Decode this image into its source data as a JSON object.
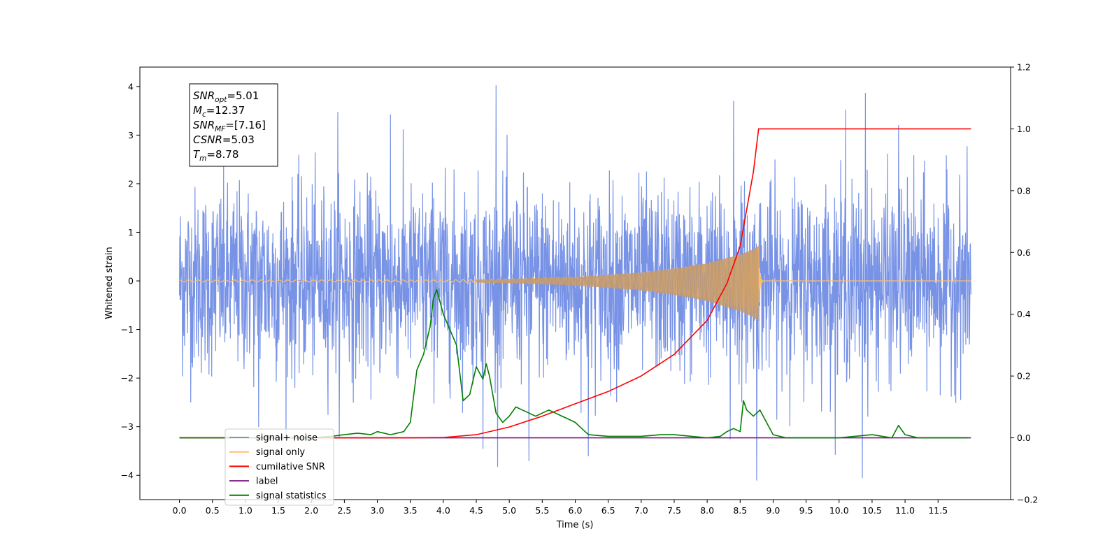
{
  "chart_data": {
    "type": "line",
    "xlabel": "Time (s)",
    "ylabel_left": "Whitened strain",
    "xlim": [
      -0.6,
      12.6
    ],
    "ylim_left": [
      -4.5,
      4.4
    ],
    "ylim_right": [
      -0.2,
      1.2
    ],
    "x_ticks": [
      "0.0",
      "0.5",
      "1.0",
      "1.5",
      "2.0",
      "2.5",
      "3.0",
      "3.5",
      "4.0",
      "4.5",
      "5.0",
      "5.5",
      "6.0",
      "6.5",
      "7.0",
      "7.5",
      "8.0",
      "8.5",
      "9.0",
      "9.5",
      "10.0",
      "10.5",
      "11.0",
      "11.5"
    ],
    "y_ticks_left": [
      "4",
      "3",
      "2",
      "1",
      "0",
      "−1",
      "−2",
      "−3",
      "−4"
    ],
    "y_ticks_right": [
      "1.2",
      "1.0",
      "0.8",
      "0.6",
      "0.4",
      "0.2",
      "0.0",
      "−0.2"
    ],
    "annotation_box": {
      "lines": [
        {
          "base": "SNR",
          "sub": "opt",
          "value": "=5.01"
        },
        {
          "base": "M",
          "sub": "c",
          "value": "=12.37"
        },
        {
          "base": "SNR",
          "sub": "MF",
          "value": "=[7.16]"
        },
        {
          "base": "CSNR",
          "sub": "",
          "value": "=5.03"
        },
        {
          "base": "T",
          "sub": "m",
          "value": "=8.78"
        }
      ]
    },
    "legend": {
      "placement": "lower-left",
      "entries": [
        {
          "label": "signal+ noise",
          "color": "#7893e6"
        },
        {
          "label": "signal only",
          "color": "#ffbf6b"
        },
        {
          "label": "cumilative SNR",
          "color": "#ff0000"
        },
        {
          "label": "label",
          "color": "#7a1a7a"
        },
        {
          "label": "signal statistics",
          "color": "#008000"
        }
      ]
    },
    "series": [
      {
        "name": "signal+ noise",
        "axis": "left",
        "color": "#7893e6",
        "x_range": [
          0,
          12
        ],
        "envelope_typical": 2.0,
        "spikes": [
          {
            "x": 4.8,
            "y": 4.02
          },
          {
            "x": 10.4,
            "y": 3.86
          },
          {
            "x": 8.4,
            "y": 3.7
          },
          {
            "x": 2.4,
            "y": 3.47
          },
          {
            "x": 3.2,
            "y": 3.42
          },
          {
            "x": 10.1,
            "y": 3.52
          },
          {
            "x": 10.9,
            "y": 3.2
          },
          {
            "x": 8.75,
            "y": -4.1
          },
          {
            "x": 10.35,
            "y": -4.05
          },
          {
            "x": 5.3,
            "y": -3.7
          },
          {
            "x": 4.6,
            "y": -3.45
          },
          {
            "x": 6.2,
            "y": -3.6
          },
          {
            "x": 1.2,
            "y": -3.0
          },
          {
            "x": 8.35,
            "y": -3.25
          }
        ]
      },
      {
        "name": "signal only",
        "axis": "left",
        "color": "#ffbf6b",
        "merger_time": 8.78,
        "amplitude_points": [
          [
            0,
            0.02
          ],
          [
            4.0,
            0.02
          ],
          [
            5.0,
            0.04
          ],
          [
            6.0,
            0.08
          ],
          [
            7.0,
            0.17
          ],
          [
            7.5,
            0.25
          ],
          [
            8.0,
            0.36
          ],
          [
            8.3,
            0.47
          ],
          [
            8.5,
            0.54
          ],
          [
            8.7,
            0.65
          ],
          [
            8.78,
            0.72
          ],
          [
            8.82,
            0.0
          ]
        ]
      },
      {
        "name": "cumilative SNR",
        "axis": "right",
        "color": "#ff0000",
        "points": [
          [
            0,
            0
          ],
          [
            3.5,
            0
          ],
          [
            4.0,
            0.001
          ],
          [
            4.5,
            0.01
          ],
          [
            5.0,
            0.035
          ],
          [
            5.5,
            0.07
          ],
          [
            6.0,
            0.11
          ],
          [
            6.5,
            0.15
          ],
          [
            7.0,
            0.2
          ],
          [
            7.5,
            0.27
          ],
          [
            8.0,
            0.38
          ],
          [
            8.3,
            0.5
          ],
          [
            8.5,
            0.62
          ],
          [
            8.7,
            0.86
          ],
          [
            8.78,
            1.0
          ],
          [
            12,
            1.0
          ]
        ]
      },
      {
        "name": "label",
        "axis": "right",
        "color": "#7a1a7a",
        "points": [
          [
            0,
            0
          ],
          [
            12,
            0
          ]
        ]
      },
      {
        "name": "signal statistics",
        "axis": "right",
        "color": "#008000",
        "points": [
          [
            0,
            0
          ],
          [
            2.0,
            0
          ],
          [
            2.3,
            0.005
          ],
          [
            2.5,
            0.01
          ],
          [
            2.7,
            0.015
          ],
          [
            2.9,
            0.01
          ],
          [
            3.0,
            0.02
          ],
          [
            3.2,
            0.01
          ],
          [
            3.4,
            0.02
          ],
          [
            3.5,
            0.05
          ],
          [
            3.6,
            0.22
          ],
          [
            3.7,
            0.27
          ],
          [
            3.8,
            0.36
          ],
          [
            3.85,
            0.45
          ],
          [
            3.9,
            0.48
          ],
          [
            4.0,
            0.4
          ],
          [
            4.1,
            0.35
          ],
          [
            4.2,
            0.3
          ],
          [
            4.3,
            0.12
          ],
          [
            4.4,
            0.14
          ],
          [
            4.5,
            0.23
          ],
          [
            4.6,
            0.19
          ],
          [
            4.65,
            0.24
          ],
          [
            4.7,
            0.2
          ],
          [
            4.8,
            0.08
          ],
          [
            4.9,
            0.05
          ],
          [
            5.0,
            0.07
          ],
          [
            5.1,
            0.1
          ],
          [
            5.2,
            0.09
          ],
          [
            5.3,
            0.08
          ],
          [
            5.4,
            0.07
          ],
          [
            5.5,
            0.08
          ],
          [
            5.6,
            0.09
          ],
          [
            5.7,
            0.08
          ],
          [
            5.8,
            0.07
          ],
          [
            5.9,
            0.06
          ],
          [
            6.0,
            0.05
          ],
          [
            6.1,
            0.03
          ],
          [
            6.2,
            0.01
          ],
          [
            6.5,
            0.005
          ],
          [
            7.0,
            0.005
          ],
          [
            7.3,
            0.01
          ],
          [
            7.5,
            0.01
          ],
          [
            8.0,
            0.0
          ],
          [
            8.2,
            0.005
          ],
          [
            8.3,
            0.02
          ],
          [
            8.4,
            0.03
          ],
          [
            8.5,
            0.02
          ],
          [
            8.55,
            0.12
          ],
          [
            8.6,
            0.09
          ],
          [
            8.7,
            0.07
          ],
          [
            8.8,
            0.09
          ],
          [
            8.9,
            0.05
          ],
          [
            9.0,
            0.01
          ],
          [
            9.2,
            0.0
          ],
          [
            10.0,
            0.0
          ],
          [
            10.5,
            0.01
          ],
          [
            10.8,
            0.0
          ],
          [
            10.9,
            0.04
          ],
          [
            11.0,
            0.01
          ],
          [
            11.2,
            0.0
          ],
          [
            11.95,
            0.0
          ]
        ]
      }
    ]
  }
}
